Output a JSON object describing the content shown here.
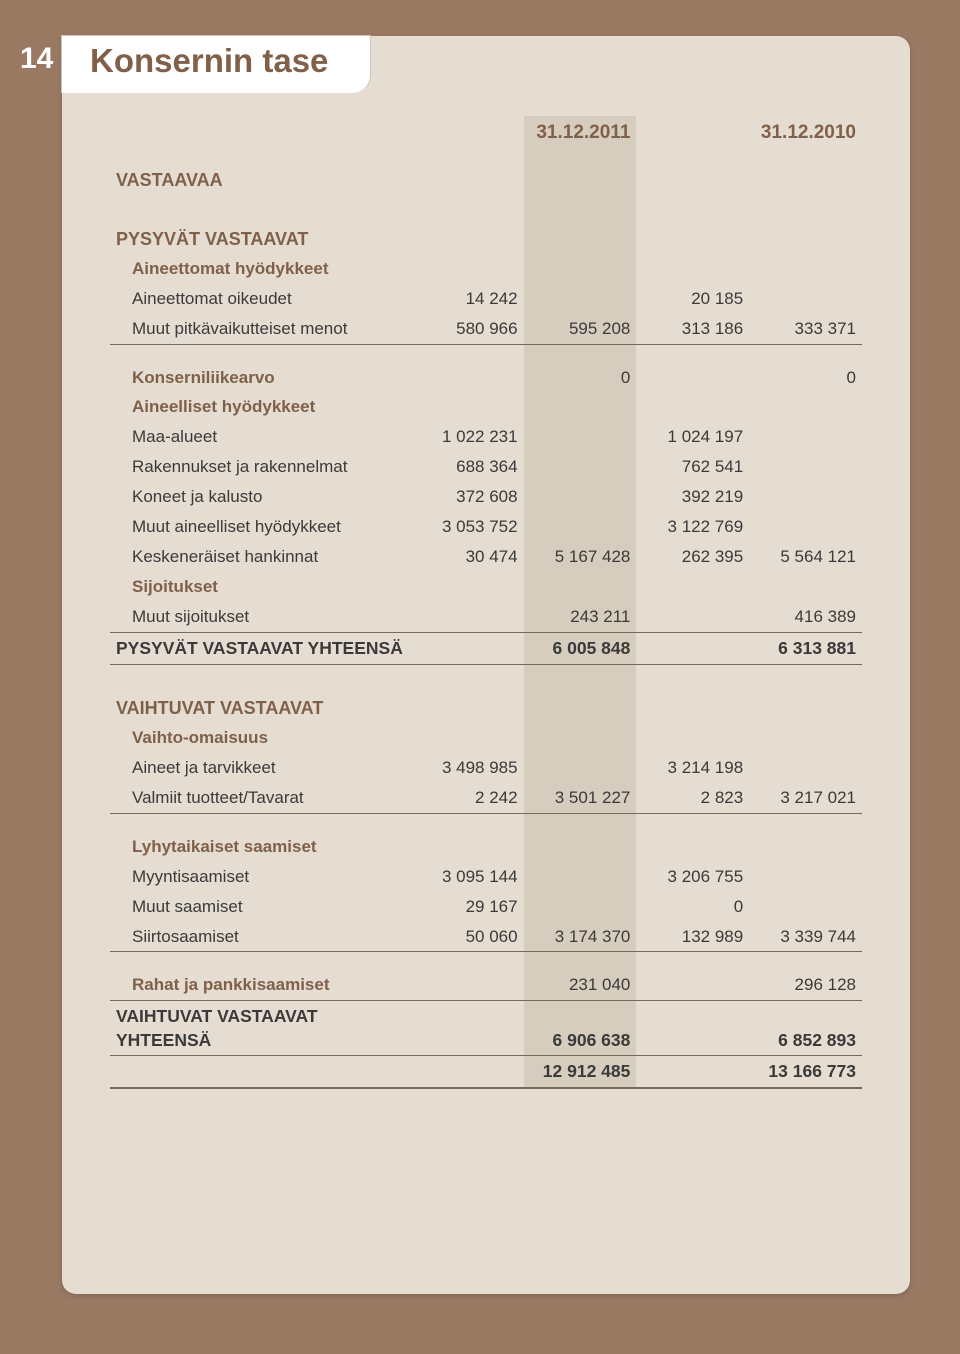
{
  "page_number": "14",
  "title": "Konsernin tase",
  "colors": {
    "page_bg": "#9a7963",
    "sheet_bg": "#e5ddd1",
    "tab_bg": "#ffffff",
    "heading": "#806048",
    "text": "#3a3a3a",
    "rule": "#766a5a",
    "highlight": "#d6cdbe"
  },
  "headers": {
    "c1": "31.12.2011",
    "c2": "31.12.2010"
  },
  "s1": "VASTAAVAA",
  "s2": "PYSYVÄT VASTAAVAT",
  "g1": "Aineettomat hyödykkeet",
  "r1": {
    "l": "Aineettomat oikeudet",
    "a": "14 242",
    "b": "",
    "c": "20 185",
    "d": ""
  },
  "r2": {
    "l": "Muut pitkävaikutteiset menot",
    "a": "580 966",
    "b": "595 208",
    "c": "313 186",
    "d": "333 371"
  },
  "r3": {
    "l": "Konserniliikearvo",
    "a": "",
    "b": "0",
    "c": "",
    "d": "0"
  },
  "g2": "Aineelliset hyödykkeet",
  "r4": {
    "l": "Maa-alueet",
    "a": "1 022 231",
    "b": "",
    "c": "1 024 197",
    "d": ""
  },
  "r5": {
    "l": "Rakennukset ja rakennelmat",
    "a": "688 364",
    "b": "",
    "c": "762 541",
    "d": ""
  },
  "r6": {
    "l": "Koneet ja kalusto",
    "a": "372 608",
    "b": "",
    "c": "392 219",
    "d": ""
  },
  "r7": {
    "l": "Muut aineelliset hyödykkeet",
    "a": "3 053 752",
    "b": "",
    "c": "3 122 769",
    "d": ""
  },
  "r8": {
    "l": "Keskeneräiset hankinnat",
    "a": "30 474",
    "b": "5 167 428",
    "c": "262 395",
    "d": "5 564 121"
  },
  "g3": "Sijoitukset",
  "r9": {
    "l": "Muut sijoitukset",
    "a": "",
    "b": "243 211",
    "c": "",
    "d": "416 389"
  },
  "t1": {
    "l": "PYSYVÄT VASTAAVAT YHTEENSÄ",
    "a": "",
    "b": "6 005 848",
    "c": "",
    "d": "6 313 881"
  },
  "s3": "VAIHTUVAT VASTAAVAT",
  "g4": "Vaihto-omaisuus",
  "r10": {
    "l": "Aineet ja tarvikkeet",
    "a": "3 498 985",
    "b": "",
    "c": "3 214 198",
    "d": ""
  },
  "r11": {
    "l": "Valmiit tuotteet/Tavarat",
    "a": "2 242",
    "b": "3 501 227",
    "c": "2 823",
    "d": "3 217 021"
  },
  "g5": "Lyhytaikaiset saamiset",
  "r12": {
    "l": "Myyntisaamiset",
    "a": "3 095 144",
    "b": "",
    "c": "3 206 755",
    "d": ""
  },
  "r13": {
    "l": "Muut saamiset",
    "a": "29 167",
    "b": "",
    "c": "0",
    "d": ""
  },
  "r14": {
    "l": "Siirtosaamiset",
    "a": "50 060",
    "b": "3 174 370",
    "c": "132 989",
    "d": "3 339 744"
  },
  "r15": {
    "l": "Rahat ja pankkisaamiset",
    "a": "",
    "b": "231 040",
    "c": "",
    "d": "296 128"
  },
  "t2": {
    "l": "VAIHTUVAT VASTAAVAT YHTEENSÄ",
    "a": "",
    "b": "6 906 638",
    "c": "",
    "d": "6 852 893"
  },
  "t3": {
    "l": "",
    "a": "",
    "b": "12 912 485",
    "c": "",
    "d": "13 166 773"
  }
}
